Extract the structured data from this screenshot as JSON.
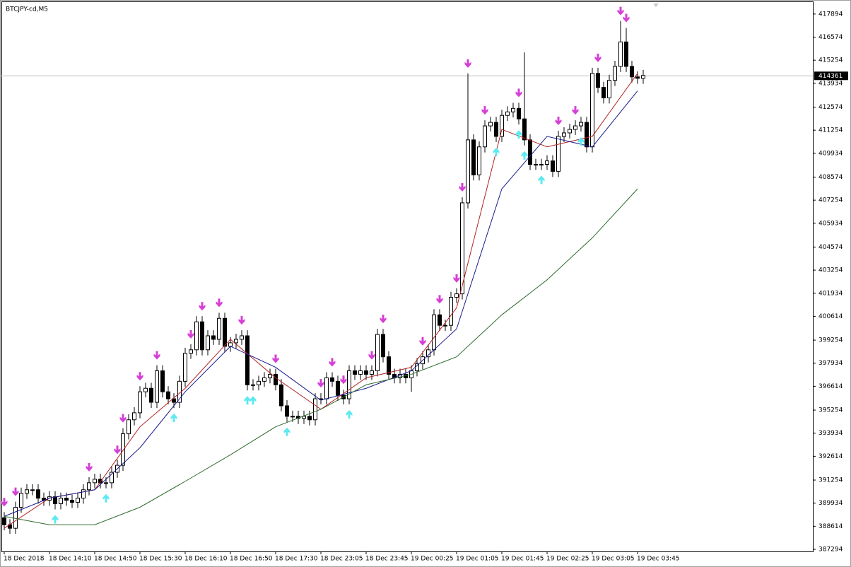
{
  "chart_data": {
    "type": "candlestick",
    "title": "BTCJPY-cd,M5",
    "categories": [
      "18 Dec 2018",
      null,
      null,
      null,
      null,
      null,
      null,
      null,
      "18 Dec 14:10",
      null,
      null,
      null,
      null,
      null,
      null,
      null,
      "18 Dec 14:50",
      null,
      null,
      null,
      null,
      null,
      null,
      null,
      "18 Dec 15:30",
      null,
      null,
      null,
      null,
      null,
      null,
      null,
      "18 Dec 16:10",
      null,
      null,
      null,
      null,
      null,
      null,
      null,
      "18 Dec 16:50",
      null,
      null,
      null,
      null,
      null,
      null,
      null,
      "18 Dec 17:30",
      null,
      null,
      null,
      null,
      null,
      null,
      null,
      "18 Dec 23:05",
      null,
      null,
      null,
      null,
      null,
      null,
      null,
      "18 Dec 23:45",
      null,
      null,
      null,
      null,
      null,
      null,
      null,
      "19 Dec 00:25",
      null,
      null,
      null,
      null,
      null,
      null,
      null,
      "19 Dec 01:05",
      null,
      null,
      null,
      null,
      null,
      null,
      null,
      "19 Dec 01:45",
      null,
      null,
      null,
      null,
      null,
      null,
      null,
      "19 Dec 02:25",
      null,
      null,
      null,
      null,
      null,
      null,
      null,
      "19 Dec 03:05",
      null,
      null,
      null,
      null,
      null,
      null,
      null,
      "19 Dec 03:45",
      null
    ],
    "open": [
      389100,
      388700,
      388500,
      389700,
      390500,
      390700,
      390700,
      390220,
      390100,
      390300,
      389900,
      390220,
      390100,
      389980,
      390220,
      390700,
      391100,
      391300,
      391100,
      391100,
      391700,
      392100,
      393900,
      394700,
      395100,
      396300,
      396500,
      395700,
      397500,
      396300,
      395900,
      395700,
      396900,
      398500,
      398700,
      400300,
      398700,
      399500,
      399300,
      400500,
      398900,
      399100,
      399300,
      399500,
      396700,
      396700,
      396900,
      397100,
      397300,
      396700,
      395500,
      394900,
      394900,
      394780,
      394900,
      394700,
      395900,
      395900,
      397100,
      396900,
      396100,
      395900,
      397500,
      397300,
      397500,
      397300,
      397500,
      399580,
      398300,
      397300,
      397100,
      397300,
      397100,
      397500,
      397900,
      398300,
      398700,
      400700,
      400100,
      400100,
      401700,
      401900,
      407100,
      410700,
      408700,
      410300,
      411500,
      411700,
      410900,
      412100,
      412300,
      412500,
      411900,
      410700,
      409300,
      409300,
      409300,
      409500,
      408900,
      410900,
      411100,
      411300,
      411500,
      411700,
      410300,
      414500,
      413700,
      413100,
      414100,
      414900,
      416300,
      414900,
      414300,
      414220
    ],
    "high": [
      389420,
      389020,
      390020,
      390820,
      391020,
      391020,
      391020,
      390540,
      390620,
      390620,
      390540,
      390540,
      390420,
      390540,
      391020,
      391420,
      391620,
      391620,
      391420,
      392020,
      392420,
      394220,
      395020,
      395420,
      396620,
      396820,
      396820,
      397820,
      397820,
      396620,
      396220,
      397220,
      398820,
      399020,
      400620,
      400620,
      399820,
      399820,
      400820,
      400820,
      399420,
      399620,
      399820,
      399820,
      397020,
      397220,
      397420,
      397620,
      397620,
      397020,
      395820,
      395220,
      395220,
      395220,
      395220,
      396220,
      396220,
      397420,
      397420,
      397220,
      396420,
      397820,
      397820,
      397820,
      397820,
      397820,
      399900,
      399900,
      398620,
      397620,
      397620,
      397620,
      397820,
      398220,
      398620,
      399020,
      401020,
      401020,
      400420,
      402020,
      402220,
      407420,
      414500,
      411020,
      410620,
      411820,
      412020,
      412020,
      412420,
      412620,
      412820,
      412820,
      415700,
      411020,
      409620,
      409620,
      409820,
      409820,
      411220,
      411420,
      411620,
      411820,
      412020,
      412020,
      414820,
      414820,
      414020,
      414420,
      415220,
      417500,
      417100,
      415220,
      414620,
      414700
    ],
    "low": [
      388380,
      388180,
      388180,
      389380,
      390180,
      390380,
      389900,
      389780,
      389780,
      389580,
      389580,
      389780,
      389660,
      389660,
      389900,
      390380,
      390780,
      390780,
      390780,
      390780,
      391380,
      391780,
      393580,
      394380,
      394780,
      395980,
      395380,
      395380,
      395980,
      395580,
      395380,
      395380,
      396580,
      398180,
      398380,
      398380,
      398380,
      398980,
      398980,
      398580,
      398580,
      398780,
      398980,
      396380,
      396380,
      396380,
      396580,
      396780,
      396380,
      395180,
      394580,
      394580,
      394460,
      394460,
      394380,
      394380,
      395580,
      395580,
      396580,
      395780,
      395580,
      395580,
      396980,
      396980,
      396980,
      396980,
      397180,
      397980,
      396980,
      396780,
      396780,
      396780,
      396300,
      397180,
      397580,
      397980,
      398380,
      399780,
      399780,
      399780,
      401380,
      401580,
      406780,
      408380,
      408380,
      409980,
      411180,
      410580,
      410580,
      411780,
      411980,
      411580,
      410380,
      408980,
      408980,
      408980,
      408980,
      408580,
      408580,
      410580,
      410780,
      410980,
      411180,
      409980,
      409980,
      413380,
      412780,
      412780,
      413780,
      414580,
      414580,
      413980,
      413900,
      413900
    ],
    "close": [
      388700,
      388500,
      389700,
      390500,
      390700,
      390700,
      390220,
      390100,
      390300,
      389900,
      390220,
      390100,
      389980,
      390220,
      390700,
      391100,
      391300,
      391100,
      391100,
      391700,
      392100,
      393900,
      394700,
      395100,
      396300,
      396500,
      395700,
      397500,
      396300,
      395900,
      395700,
      396900,
      398500,
      398700,
      400300,
      398700,
      399500,
      399300,
      400500,
      398900,
      399100,
      399300,
      399500,
      396700,
      396700,
      396900,
      397100,
      397300,
      396700,
      395500,
      394900,
      394900,
      394780,
      394900,
      394700,
      395900,
      395900,
      397100,
      396900,
      396100,
      395900,
      397500,
      397300,
      397500,
      397300,
      397500,
      399580,
      398300,
      397300,
      397100,
      397300,
      397100,
      397500,
      397900,
      398300,
      398700,
      400700,
      400100,
      400100,
      401700,
      401900,
      407100,
      410700,
      408700,
      410300,
      411500,
      411700,
      410900,
      412100,
      412300,
      412500,
      411900,
      410700,
      409300,
      409300,
      409300,
      409500,
      408900,
      410900,
      411100,
      411300,
      411500,
      411700,
      410300,
      414500,
      413700,
      413100,
      414100,
      414900,
      416300,
      414900,
      414300,
      414220,
      414380
    ],
    "lines": [
      {
        "color": "#b22222",
        "x": [
          0,
          8,
          16,
          24,
          32,
          40,
          48,
          56,
          64,
          72,
          80,
          88,
          96,
          104,
          112
        ],
        "values": [
          388500,
          390220,
          390700,
          394300,
          396500,
          399300,
          397100,
          395300,
          397100,
          397700,
          401100,
          411300,
          410300,
          410900,
          414500
        ]
      },
      {
        "color": "#1a1a8c",
        "x": [
          0,
          8,
          16,
          24,
          32,
          40,
          48,
          56,
          64,
          72,
          80,
          88,
          96,
          104,
          112
        ],
        "values": [
          389180,
          390220,
          390700,
          393100,
          396300,
          398900,
          397700,
          395820,
          396500,
          397500,
          399900,
          407900,
          410900,
          410300,
          413500
        ]
      },
      {
        "color": "#2e6b2e",
        "x": [
          0,
          8,
          16,
          24,
          32,
          40,
          48,
          56,
          64,
          72,
          80,
          88,
          96,
          104,
          112
        ],
        "values": [
          389180,
          388700,
          388700,
          389700,
          391180,
          392700,
          394300,
          395300,
          396700,
          397300,
          398300,
          400700,
          402700,
          405100,
          407900
        ]
      }
    ],
    "down_signals": [
      0,
      2,
      15,
      20,
      21,
      24,
      27,
      33,
      35,
      38,
      42,
      48,
      56,
      58,
      60,
      65,
      67,
      74,
      77,
      80,
      81,
      82,
      85,
      91,
      98,
      101,
      105,
      109,
      110
    ],
    "up_signals": [
      9,
      18,
      30,
      43,
      44,
      50,
      61,
      87,
      91,
      92,
      95,
      102
    ],
    "down_color": "#d63fd6",
    "up_color": "#5ee8f0",
    "bull_color": "#ffffff",
    "bear_color": "#000000",
    "current_price": 414361,
    "ylim": [
      387174,
      418494
    ],
    "yticks": [
      417894,
      416574,
      415254,
      413934,
      412574,
      411254,
      409934,
      408574,
      407254,
      405934,
      404574,
      403254,
      401934,
      400614,
      399254,
      397934,
      396614,
      395254,
      393934,
      392614,
      391254,
      389934,
      388614,
      387294
    ]
  }
}
